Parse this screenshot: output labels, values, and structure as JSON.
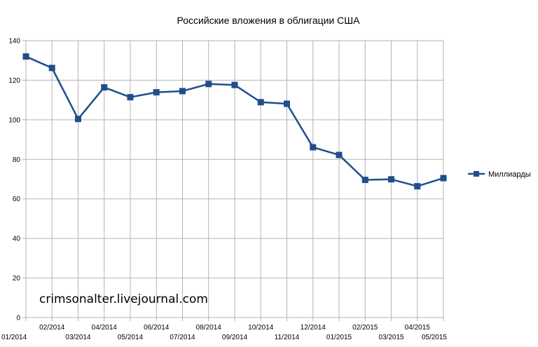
{
  "chart_data": {
    "type": "line",
    "title": "Российские вложения в облигации США",
    "x": [
      "01/2014",
      "02/2014",
      "03/2014",
      "04/2014",
      "05/2014",
      "06/2014",
      "07/2014",
      "08/2014",
      "09/2014",
      "10/2014",
      "11/2014",
      "12/2014",
      "01/2015",
      "02/2015",
      "03/2015",
      "04/2015",
      "05/2015"
    ],
    "series": [
      {
        "name": "Миллиарды",
        "color": "#1f4e8c",
        "values": [
          132,
          126.2,
          100.4,
          116.4,
          111.4,
          113.9,
          114.5,
          118.1,
          117.6,
          108.9,
          108.1,
          86.1,
          82.2,
          69.6,
          69.9,
          66.4,
          70.5
        ]
      }
    ],
    "ylim": [
      0,
      140
    ],
    "yticks": [
      "0",
      "20",
      "40",
      "60",
      "80",
      "100",
      "120",
      "140"
    ],
    "grid": true,
    "legend": "right"
  },
  "watermark": "crimsonalter.livejournal.com"
}
